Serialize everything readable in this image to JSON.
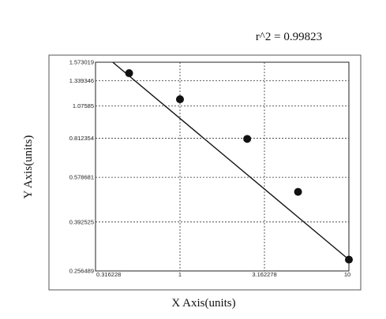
{
  "chart_data": {
    "type": "scatter",
    "annotation": "r^2 = 0.99823",
    "xlabel": "X Axis(units)",
    "ylabel": "Y Axis(units)",
    "x_scale": "log",
    "y_scale": "log",
    "xlim": [
      0.316228,
      10
    ],
    "ylim": [
      0.256489,
      1.573019
    ],
    "x_ticks": [
      "0.316228",
      "1",
      "3.162278",
      "10"
    ],
    "y_ticks": [
      "0.256489",
      "0.392525",
      "0.578681",
      "0.812354",
      "1.07585",
      "1.339346",
      "1.573019"
    ],
    "grid": true,
    "series": [
      {
        "x": [
          0.5,
          1,
          2.5,
          5,
          10
        ],
        "y": [
          1.43,
          1.14,
          0.808,
          0.51,
          0.283
        ],
        "fit_line": {
          "x": [
            0.4,
            10
          ],
          "y": [
            1.573019,
            0.283
          ]
        }
      }
    ]
  }
}
